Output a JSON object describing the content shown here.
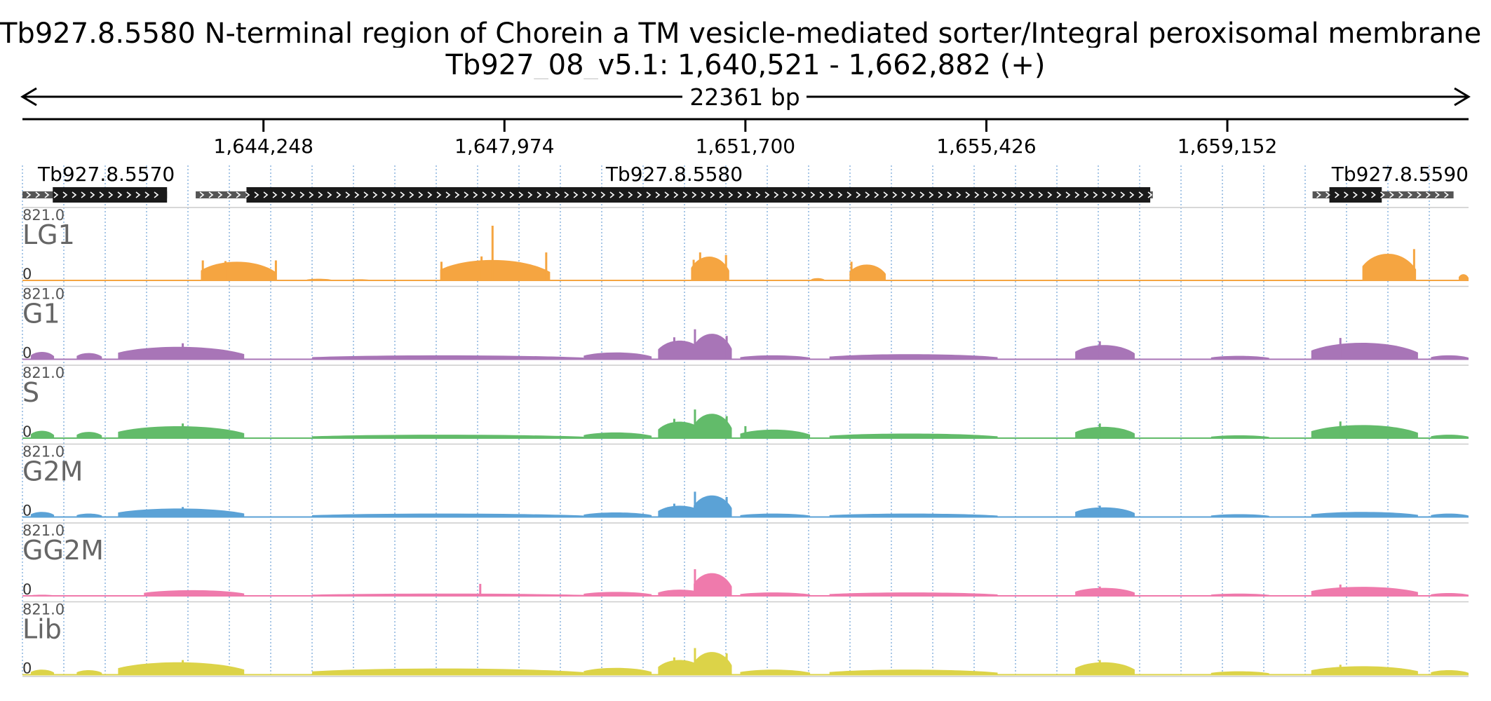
{
  "header": {
    "title": "Tb927.8.5580  N-terminal region of Chorein  a TM vesicle-mediated sorter/Integral peroxisomal membrane peroxin  putative",
    "subtitle": "Tb927_08_v5.1: 1,640,521 - 1,662,882 (+)",
    "span_label": "22361 bp"
  },
  "chart_data": {
    "type": "area",
    "chromosome": "Tb927_08_v5.1",
    "strand": "+",
    "x_range": [
      1640521,
      1662882
    ],
    "x_ticks": [
      1644248,
      1647974,
      1651700,
      1655426,
      1659152
    ],
    "x_tick_labels": [
      "1,644,248",
      "1,647,974",
      "1,651,700",
      "1,655,426",
      "1,659,152"
    ],
    "y_range": [
      0,
      821.0
    ],
    "y_max_label": "821.0",
    "y_min_label": "0",
    "gridlines": "dotted vertical",
    "genes": [
      {
        "name": "Tb927.8.5570",
        "start": 1640521,
        "end": 1642757,
        "cds_start": 1640990,
        "cds_end": 1642757,
        "strand": "+"
      },
      {
        "name": "Tb927.8.5580",
        "start": 1643200,
        "end": 1658000,
        "cds_start": 1643985,
        "cds_end": 1657960,
        "strand": "+"
      },
      {
        "name": "Tb927.8.5590",
        "start": 1660470,
        "end": 1662650,
        "cds_start": 1660730,
        "cds_end": 1661540,
        "strand": "+"
      }
    ],
    "series": [
      {
        "name": "LG1",
        "color": "#f5a541",
        "peaks": [
          {
            "x0": 1643280,
            "x1": 1644450,
            "peak": 330,
            "spikes": [
              [
                1643310,
                300
              ],
              [
                1643660,
                290
              ],
              [
                1644440,
                300
              ]
            ]
          },
          {
            "x0": 1644920,
            "x1": 1645300,
            "peak": 30,
            "spikes": []
          },
          {
            "x0": 1645580,
            "x1": 1645900,
            "peak": 20,
            "spikes": []
          },
          {
            "x0": 1646980,
            "x1": 1648680,
            "peak": 360,
            "spikes": [
              [
                1647000,
                280
              ],
              [
                1647620,
                360
              ],
              [
                1647790,
                821
              ],
              [
                1648620,
                420
              ]
            ]
          },
          {
            "x0": 1650860,
            "x1": 1651450,
            "peak": 420,
            "spikes": [
              [
                1650900,
                310
              ],
              [
                1651000,
                420
              ],
              [
                1651400,
                380
              ]
            ]
          },
          {
            "x0": 1652720,
            "x1": 1652920,
            "peak": 40,
            "spikes": []
          },
          {
            "x0": 1653310,
            "x1": 1653870,
            "peak": 280,
            "spikes": [
              [
                1653340,
                280
              ]
            ]
          },
          {
            "x0": 1661240,
            "x1": 1662070,
            "peak": 470,
            "spikes": [
              [
                1661270,
                230
              ],
              [
                1662040,
                470
              ]
            ]
          },
          {
            "x0": 1662730,
            "x1": 1662882,
            "peak": 110,
            "spikes": []
          }
        ]
      },
      {
        "name": "G1",
        "color": "#a875b7",
        "peaks": [
          {
            "x0": 1640650,
            "x1": 1641010,
            "peak": 130,
            "spikes": []
          },
          {
            "x0": 1641360,
            "x1": 1641750,
            "peak": 110,
            "spikes": []
          },
          {
            "x0": 1642000,
            "x1": 1643950,
            "peak": 220,
            "spikes": [
              [
                1643000,
                240
              ]
            ]
          },
          {
            "x0": 1645000,
            "x1": 1649200,
            "peak": 70,
            "spikes": []
          },
          {
            "x0": 1649200,
            "x1": 1650250,
            "peak": 120,
            "spikes": []
          },
          {
            "x0": 1650350,
            "x1": 1651050,
            "peak": 330,
            "spikes": [
              [
                1650600,
                330
              ]
            ]
          },
          {
            "x0": 1650900,
            "x1": 1651490,
            "peak": 450,
            "spikes": [
              [
                1650920,
                450
              ],
              [
                1651410,
                350
              ]
            ]
          },
          {
            "x0": 1651620,
            "x1": 1652700,
            "peak": 70,
            "spikes": []
          },
          {
            "x0": 1653000,
            "x1": 1655600,
            "peak": 90,
            "spikes": []
          },
          {
            "x0": 1656800,
            "x1": 1657720,
            "peak": 250,
            "spikes": [
              [
                1657180,
                270
              ]
            ]
          },
          {
            "x0": 1658900,
            "x1": 1659800,
            "peak": 60,
            "spikes": []
          },
          {
            "x0": 1660450,
            "x1": 1662100,
            "peak": 290,
            "spikes": [
              [
                1660900,
                320
              ]
            ]
          },
          {
            "x0": 1662300,
            "x1": 1662882,
            "peak": 70,
            "spikes": []
          }
        ]
      },
      {
        "name": "S",
        "color": "#62bb6a",
        "peaks": [
          {
            "x0": 1640650,
            "x1": 1641010,
            "peak": 130,
            "spikes": []
          },
          {
            "x0": 1641360,
            "x1": 1641750,
            "peak": 110,
            "spikes": []
          },
          {
            "x0": 1642000,
            "x1": 1643950,
            "peak": 210,
            "spikes": [
              [
                1643000,
                220
              ]
            ]
          },
          {
            "x0": 1645000,
            "x1": 1649200,
            "peak": 60,
            "spikes": []
          },
          {
            "x0": 1649200,
            "x1": 1650250,
            "peak": 100,
            "spikes": []
          },
          {
            "x0": 1650350,
            "x1": 1651050,
            "peak": 290,
            "spikes": [
              [
                1650600,
                290
              ]
            ]
          },
          {
            "x0": 1650900,
            "x1": 1651490,
            "peak": 430,
            "spikes": [
              [
                1650920,
                430
              ],
              [
                1651410,
                330
              ]
            ]
          },
          {
            "x0": 1651620,
            "x1": 1652700,
            "peak": 150,
            "spikes": [
              [
                1651700,
                180
              ]
            ]
          },
          {
            "x0": 1653000,
            "x1": 1655600,
            "peak": 80,
            "spikes": []
          },
          {
            "x0": 1656800,
            "x1": 1657720,
            "peak": 200,
            "spikes": [
              [
                1657180,
                220
              ]
            ]
          },
          {
            "x0": 1658900,
            "x1": 1659800,
            "peak": 50,
            "spikes": []
          },
          {
            "x0": 1660450,
            "x1": 1662100,
            "peak": 230,
            "spikes": [
              [
                1660900,
                250
              ]
            ]
          },
          {
            "x0": 1662300,
            "x1": 1662882,
            "peak": 60,
            "spikes": []
          }
        ]
      },
      {
        "name": "G2M",
        "color": "#5ba2d6",
        "peaks": [
          {
            "x0": 1640650,
            "x1": 1641010,
            "peak": 90,
            "spikes": []
          },
          {
            "x0": 1641360,
            "x1": 1641750,
            "peak": 60,
            "spikes": []
          },
          {
            "x0": 1642000,
            "x1": 1643950,
            "peak": 150,
            "spikes": [
              [
                1643000,
                150
              ]
            ]
          },
          {
            "x0": 1645000,
            "x1": 1649200,
            "peak": 60,
            "spikes": []
          },
          {
            "x0": 1649200,
            "x1": 1650250,
            "peak": 80,
            "spikes": []
          },
          {
            "x0": 1650350,
            "x1": 1651050,
            "peak": 200,
            "spikes": [
              [
                1650600,
                200
              ]
            ]
          },
          {
            "x0": 1650900,
            "x1": 1651490,
            "peak": 380,
            "spikes": [
              [
                1650920,
                380
              ],
              [
                1651410,
                300
              ]
            ]
          },
          {
            "x0": 1651620,
            "x1": 1652700,
            "peak": 60,
            "spikes": []
          },
          {
            "x0": 1653000,
            "x1": 1655600,
            "peak": 60,
            "spikes": []
          },
          {
            "x0": 1656800,
            "x1": 1657720,
            "peak": 170,
            "spikes": [
              [
                1657180,
                170
              ]
            ]
          },
          {
            "x0": 1658900,
            "x1": 1659800,
            "peak": 50,
            "spikes": []
          },
          {
            "x0": 1660450,
            "x1": 1662100,
            "peak": 90,
            "spikes": []
          },
          {
            "x0": 1662300,
            "x1": 1662882,
            "peak": 60,
            "spikes": []
          }
        ]
      },
      {
        "name": "GG2M",
        "color": "#ef7aac",
        "peaks": [
          {
            "x0": 1640650,
            "x1": 1641010,
            "peak": 20,
            "spikes": []
          },
          {
            "x0": 1642400,
            "x1": 1643950,
            "peak": 100,
            "spikes": []
          },
          {
            "x0": 1645000,
            "x1": 1649200,
            "peak": 40,
            "spikes": [
              [
                1647600,
                180
              ]
            ]
          },
          {
            "x0": 1649200,
            "x1": 1650250,
            "peak": 70,
            "spikes": []
          },
          {
            "x0": 1650350,
            "x1": 1651050,
            "peak": 110,
            "spikes": []
          },
          {
            "x0": 1650900,
            "x1": 1651490,
            "peak": 400,
            "spikes": [
              [
                1650920,
                400
              ],
              [
                1651410,
                230
              ]
            ]
          },
          {
            "x0": 1651620,
            "x1": 1652700,
            "peak": 60,
            "spikes": []
          },
          {
            "x0": 1653000,
            "x1": 1655600,
            "peak": 60,
            "spikes": []
          },
          {
            "x0": 1656800,
            "x1": 1657720,
            "peak": 140,
            "spikes": [
              [
                1657180,
                140
              ]
            ]
          },
          {
            "x0": 1658900,
            "x1": 1659800,
            "peak": 40,
            "spikes": []
          },
          {
            "x0": 1660450,
            "x1": 1662100,
            "peak": 160,
            "spikes": [
              [
                1660900,
                170
              ]
            ]
          },
          {
            "x0": 1662300,
            "x1": 1662882,
            "peak": 50,
            "spikes": []
          }
        ]
      },
      {
        "name": "Lib",
        "color": "#dcd348",
        "peaks": [
          {
            "x0": 1640650,
            "x1": 1641010,
            "peak": 90,
            "spikes": []
          },
          {
            "x0": 1641360,
            "x1": 1641750,
            "peak": 80,
            "spikes": []
          },
          {
            "x0": 1642000,
            "x1": 1643950,
            "peak": 220,
            "spikes": [
              [
                1643000,
                220
              ]
            ]
          },
          {
            "x0": 1645000,
            "x1": 1649200,
            "peak": 110,
            "spikes": []
          },
          {
            "x0": 1649200,
            "x1": 1650250,
            "peak": 120,
            "spikes": []
          },
          {
            "x0": 1650350,
            "x1": 1651050,
            "peak": 260,
            "spikes": [
              [
                1650600,
                260
              ]
            ]
          },
          {
            "x0": 1650900,
            "x1": 1651490,
            "peak": 400,
            "spikes": [
              [
                1650920,
                400
              ],
              [
                1651410,
                320
              ]
            ]
          },
          {
            "x0": 1651620,
            "x1": 1652700,
            "peak": 90,
            "spikes": []
          },
          {
            "x0": 1653000,
            "x1": 1655600,
            "peak": 90,
            "spikes": []
          },
          {
            "x0": 1656800,
            "x1": 1657720,
            "peak": 220,
            "spikes": [
              [
                1657180,
                220
              ]
            ]
          },
          {
            "x0": 1658900,
            "x1": 1659800,
            "peak": 60,
            "spikes": []
          },
          {
            "x0": 1660450,
            "x1": 1662100,
            "peak": 150,
            "spikes": [
              [
                1660900,
                150
              ]
            ]
          },
          {
            "x0": 1662300,
            "x1": 1662882,
            "peak": 80,
            "spikes": []
          }
        ]
      }
    ]
  }
}
